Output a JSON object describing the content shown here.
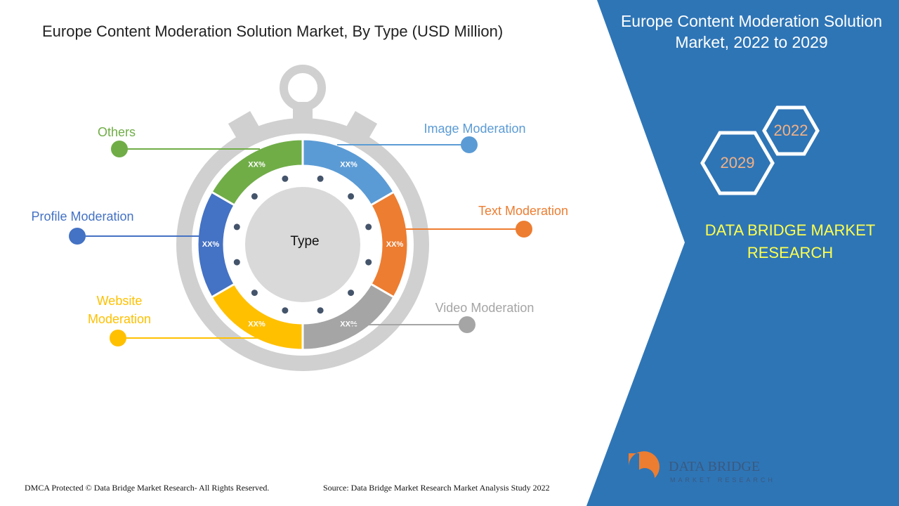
{
  "title": "Europe Content Moderation Solution Market, By Type (USD Million)",
  "center_label": "Type",
  "segments": [
    {
      "label": "Image Moderation",
      "value_label": "XX%",
      "color": "#5b9bd5"
    },
    {
      "label": "Text Moderation",
      "value_label": "XX%",
      "color": "#ed7d31"
    },
    {
      "label": "Video Moderation",
      "value_label": "XX%",
      "color": "#a5a5a5"
    },
    {
      "label": "Website Moderation",
      "value_label": "XX%",
      "color": "#ffc000"
    },
    {
      "label": "Profile Moderation",
      "value_label": "XX%",
      "color": "#4472c4"
    },
    {
      "label": "Others",
      "value_label": "XX%",
      "color": "#70ad47"
    }
  ],
  "panel": {
    "title": "Europe Content Moderation Solution Market, 2022 to 2029",
    "years": [
      "2022",
      "2029"
    ],
    "brand": "DATA BRIDGE MARKET RESEARCH",
    "logo_text": "DATA BRIDGE",
    "logo_subtext": "MARKET RESEARCH"
  },
  "footer": {
    "copyright": "DMCA Protected © Data Bridge Market Research- All Rights Reserved.",
    "source": "Source: Data Bridge Market Research Market Analysis Study 2022"
  }
}
